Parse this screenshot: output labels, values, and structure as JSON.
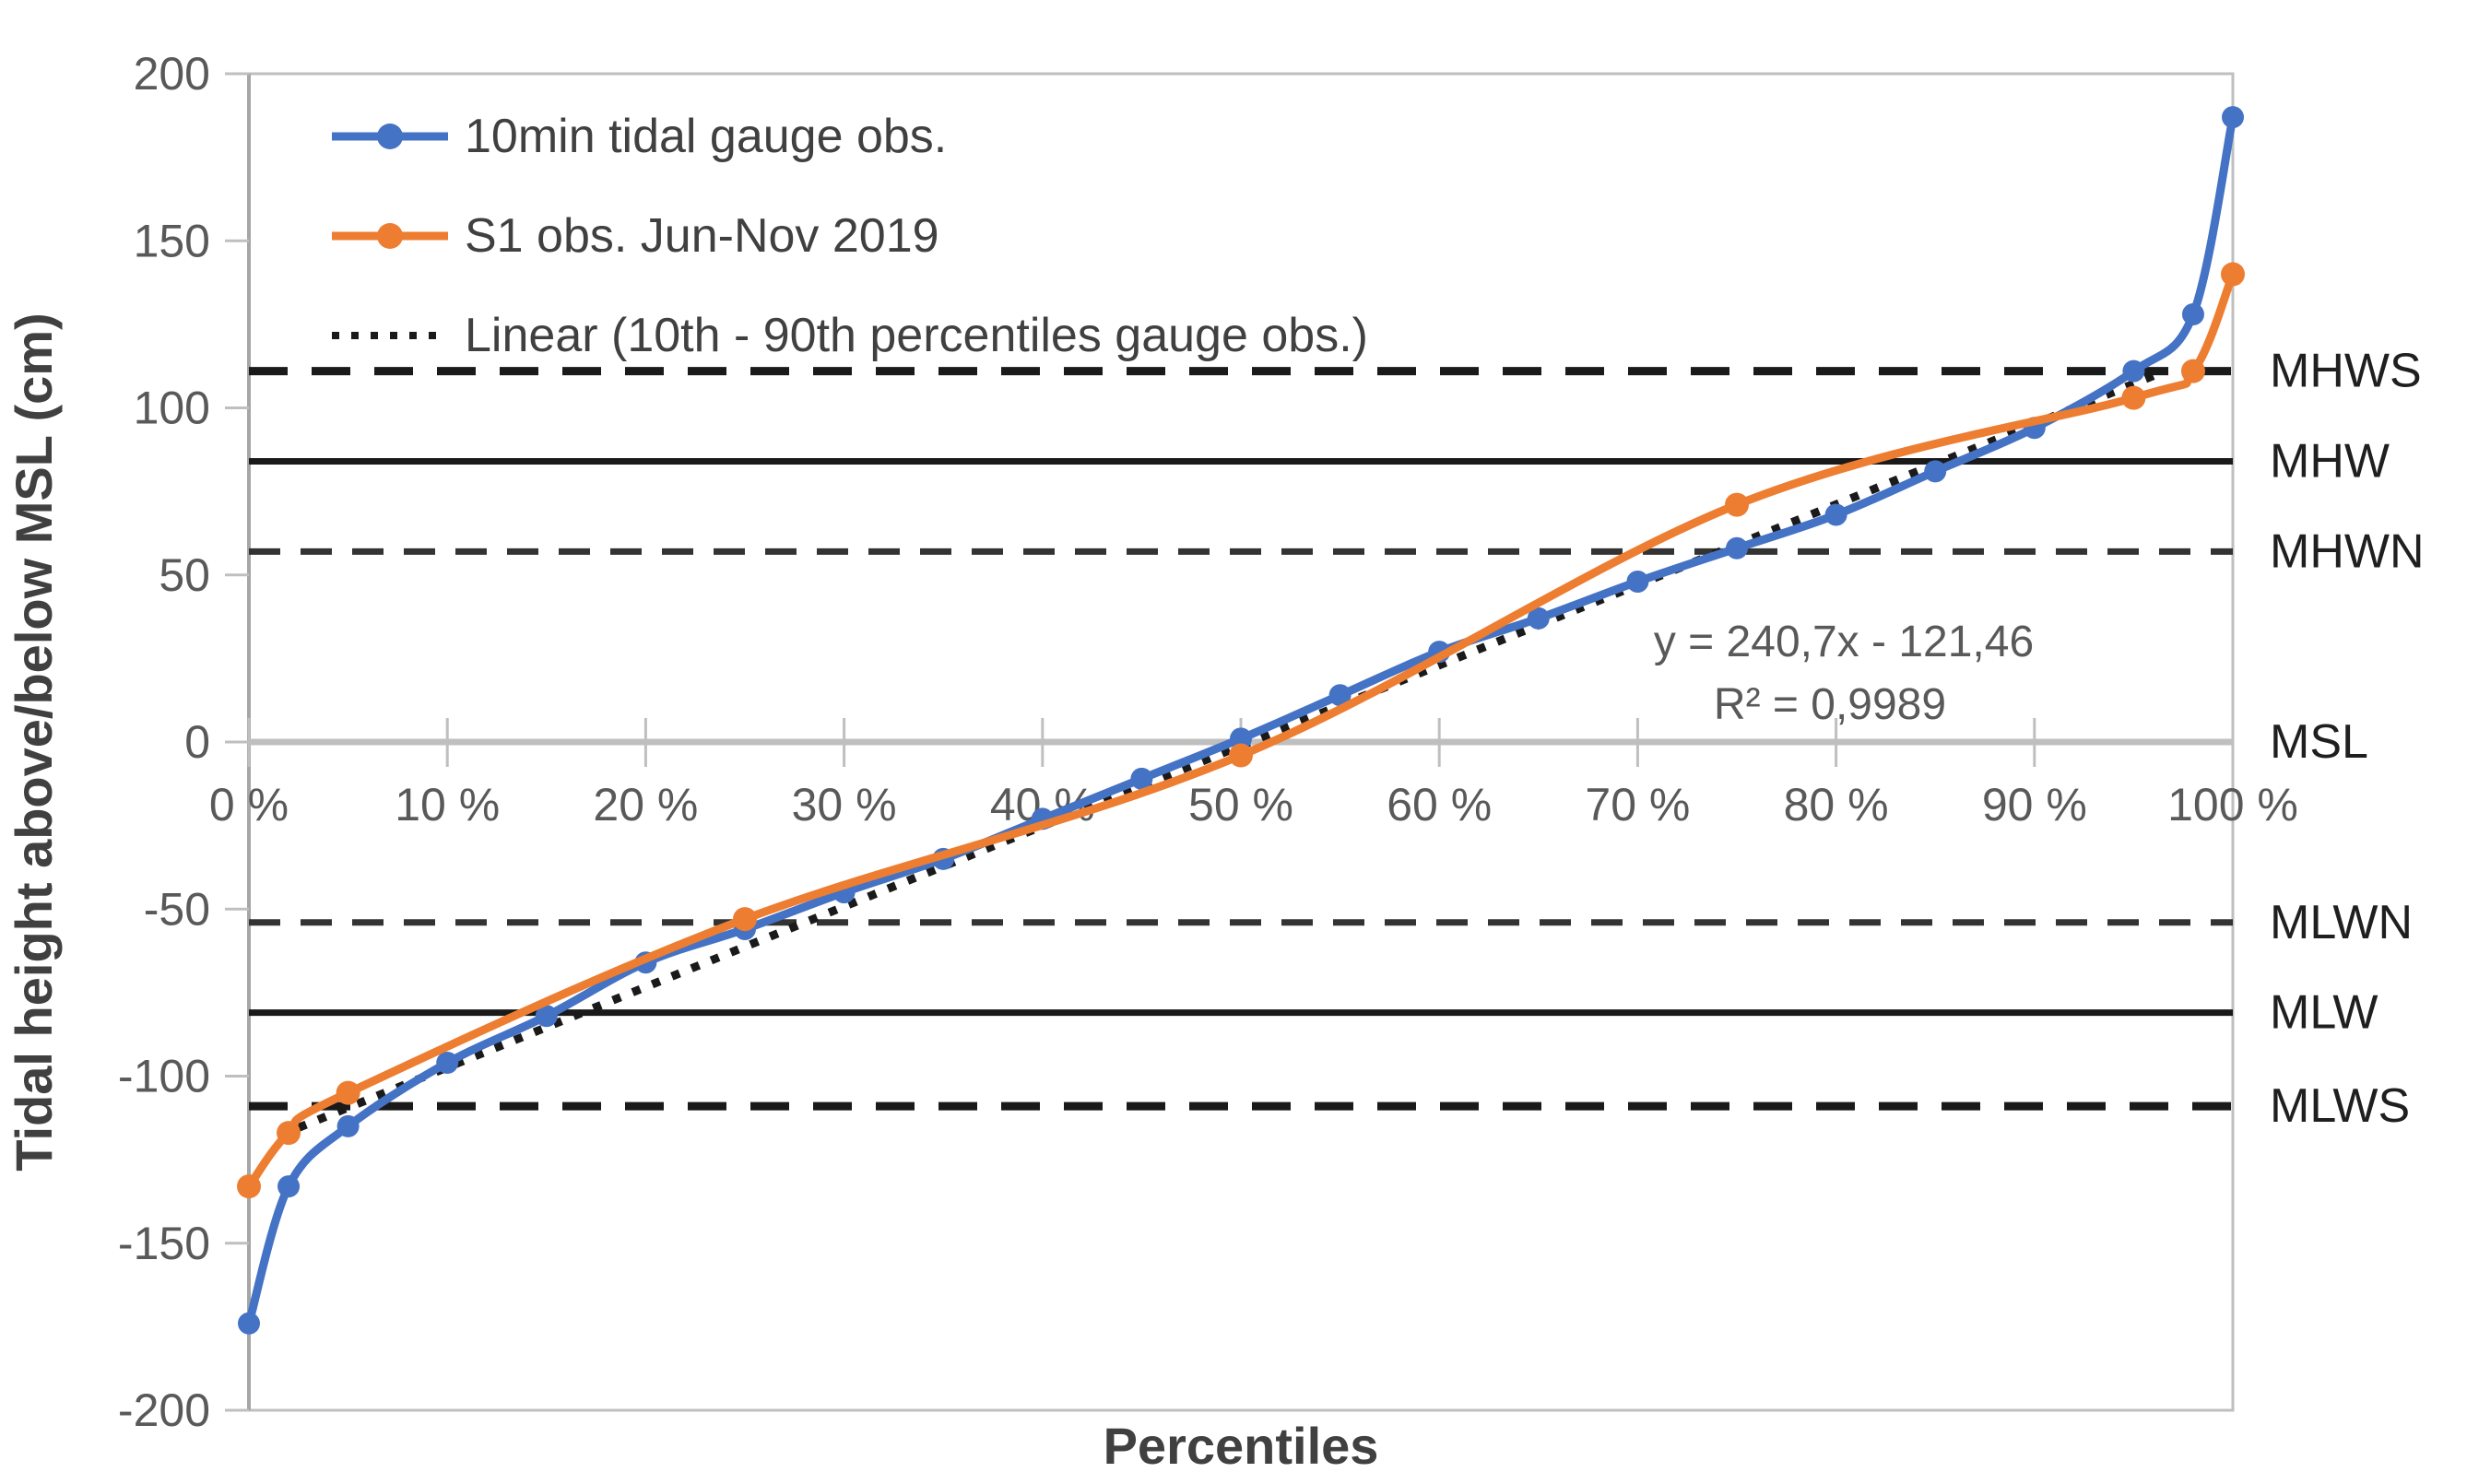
{
  "chart_data": {
    "type": "line",
    "title": "",
    "xlabel": "Percentiles",
    "ylabel": "Tidal height above/below MSL (cm)",
    "xlim": [
      0,
      100
    ],
    "ylim": [
      -200,
      200
    ],
    "grid": "none",
    "legend_position": "top-left-inside",
    "x_ticks": [
      "0 %",
      "10 %",
      "20 %",
      "30 %",
      "40 %",
      "50 %",
      "60 %",
      "70 %",
      "80 %",
      "90 %",
      "100 %"
    ],
    "x_tick_values": [
      0,
      10,
      20,
      30,
      40,
      50,
      60,
      70,
      80,
      90,
      100
    ],
    "y_ticks": [
      "200",
      "150",
      "100",
      "50",
      "0",
      "-50",
      "-100",
      "-150",
      "-200"
    ],
    "y_tick_values": [
      200,
      150,
      100,
      50,
      0,
      -50,
      -100,
      -150,
      -200
    ],
    "series": [
      {
        "name": "10min tidal gauge obs.",
        "color": "#4472C4",
        "marker": "circle",
        "points": [
          [
            0,
            -174
          ],
          [
            2,
            -133
          ],
          [
            5,
            -115
          ],
          [
            10,
            -96
          ],
          [
            15,
            -82
          ],
          [
            20,
            -66
          ],
          [
            25,
            -56
          ],
          [
            30,
            -45
          ],
          [
            35,
            -35
          ],
          [
            40,
            -23
          ],
          [
            45,
            -11
          ],
          [
            50,
            1
          ],
          [
            55,
            14
          ],
          [
            60,
            27
          ],
          [
            65,
            37
          ],
          [
            70,
            48
          ],
          [
            75,
            58
          ],
          [
            80,
            68
          ],
          [
            85,
            81
          ],
          [
            90,
            94
          ],
          [
            95,
            111
          ],
          [
            98,
            128
          ],
          [
            100,
            187
          ]
        ]
      },
      {
        "name": "S1 obs. Jun-Nov 2019",
        "color": "#ED7D31",
        "marker": "circle",
        "points": [
          [
            0,
            -133
          ],
          [
            2,
            -117
          ],
          [
            5,
            -105
          ],
          [
            25,
            -53
          ],
          [
            50,
            -4
          ],
          [
            75,
            71
          ],
          [
            95,
            103
          ],
          [
            98,
            111
          ],
          [
            100,
            140
          ]
        ]
      }
    ],
    "trendline": {
      "name": "Linear (10th - 90th percentiles gauge obs.)",
      "style": "dotted",
      "color": "#1a1a1a",
      "slope_per_fraction": 240.7,
      "intercept": -121.46,
      "x_span_pct": [
        2.5,
        96
      ],
      "equation_text": "y = 240,7x - 121,46",
      "r2_text": "R² = 0,9989"
    },
    "reference_lines": [
      {
        "label": "MHWS",
        "value": 111,
        "style": "dashed-bold"
      },
      {
        "label": "MHW",
        "value": 84,
        "style": "solid"
      },
      {
        "label": "MHWN",
        "value": 57,
        "style": "dashed"
      },
      {
        "label": "MSL",
        "value": 0,
        "style": "axis-line"
      },
      {
        "label": "MLWN",
        "value": -54,
        "style": "dashed"
      },
      {
        "label": "MLW",
        "value": -81,
        "style": "solid"
      },
      {
        "label": "MLWS",
        "value": -109,
        "style": "dashed-bold"
      }
    ],
    "legend": [
      {
        "label": "10min tidal gauge obs.",
        "swatch": "line-circle",
        "color": "#4472C4"
      },
      {
        "label": "S1 obs. Jun-Nov 2019",
        "swatch": "line-circle",
        "color": "#ED7D31"
      },
      {
        "label": "Linear (10th - 90th percentiles gauge obs.)",
        "swatch": "dotted-line",
        "color": "#1a1a1a"
      }
    ],
    "colors": {
      "axis_gray": "#BFBFBF",
      "axis_line_gray": "#A6A6A6",
      "tick_label_gray": "#595959",
      "title_gray": "#404040",
      "ref_label_black": "#1f1f1f",
      "annotation_gray": "#595959"
    }
  }
}
